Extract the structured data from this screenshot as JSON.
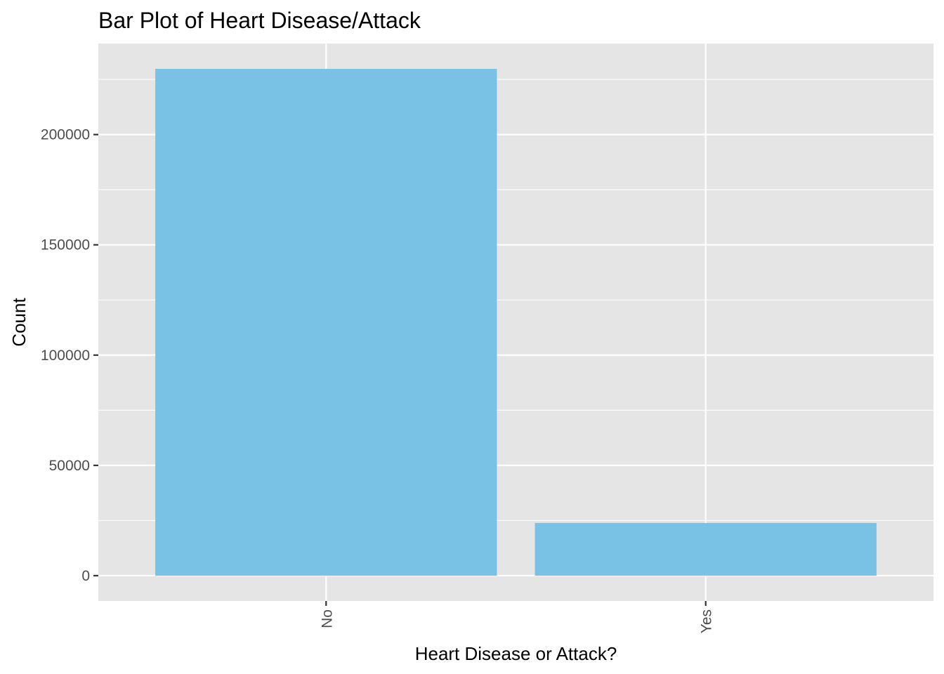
{
  "chart_data": {
    "type": "bar",
    "title": "Bar Plot of Heart Disease/Attack",
    "xlabel": "Heart Disease or Attack?",
    "ylabel": "Count",
    "categories": [
      "No",
      "Yes"
    ],
    "values": [
      229787,
      23893
    ],
    "ylim": [
      -11489,
      241276
    ],
    "yticks": [
      0,
      50000,
      100000,
      150000,
      200000
    ],
    "ytick_labels": [
      "0",
      "50000",
      "100000",
      "150000",
      "200000"
    ],
    "x_tick_rotation": "vertical",
    "grid": true,
    "legend": "none",
    "colors": {
      "bar": "#7AC2E5",
      "panel_background": "#E5E5E5",
      "grid": "#FFFFFF",
      "tick_text": "#4D4D4D",
      "text": "#000000"
    }
  }
}
